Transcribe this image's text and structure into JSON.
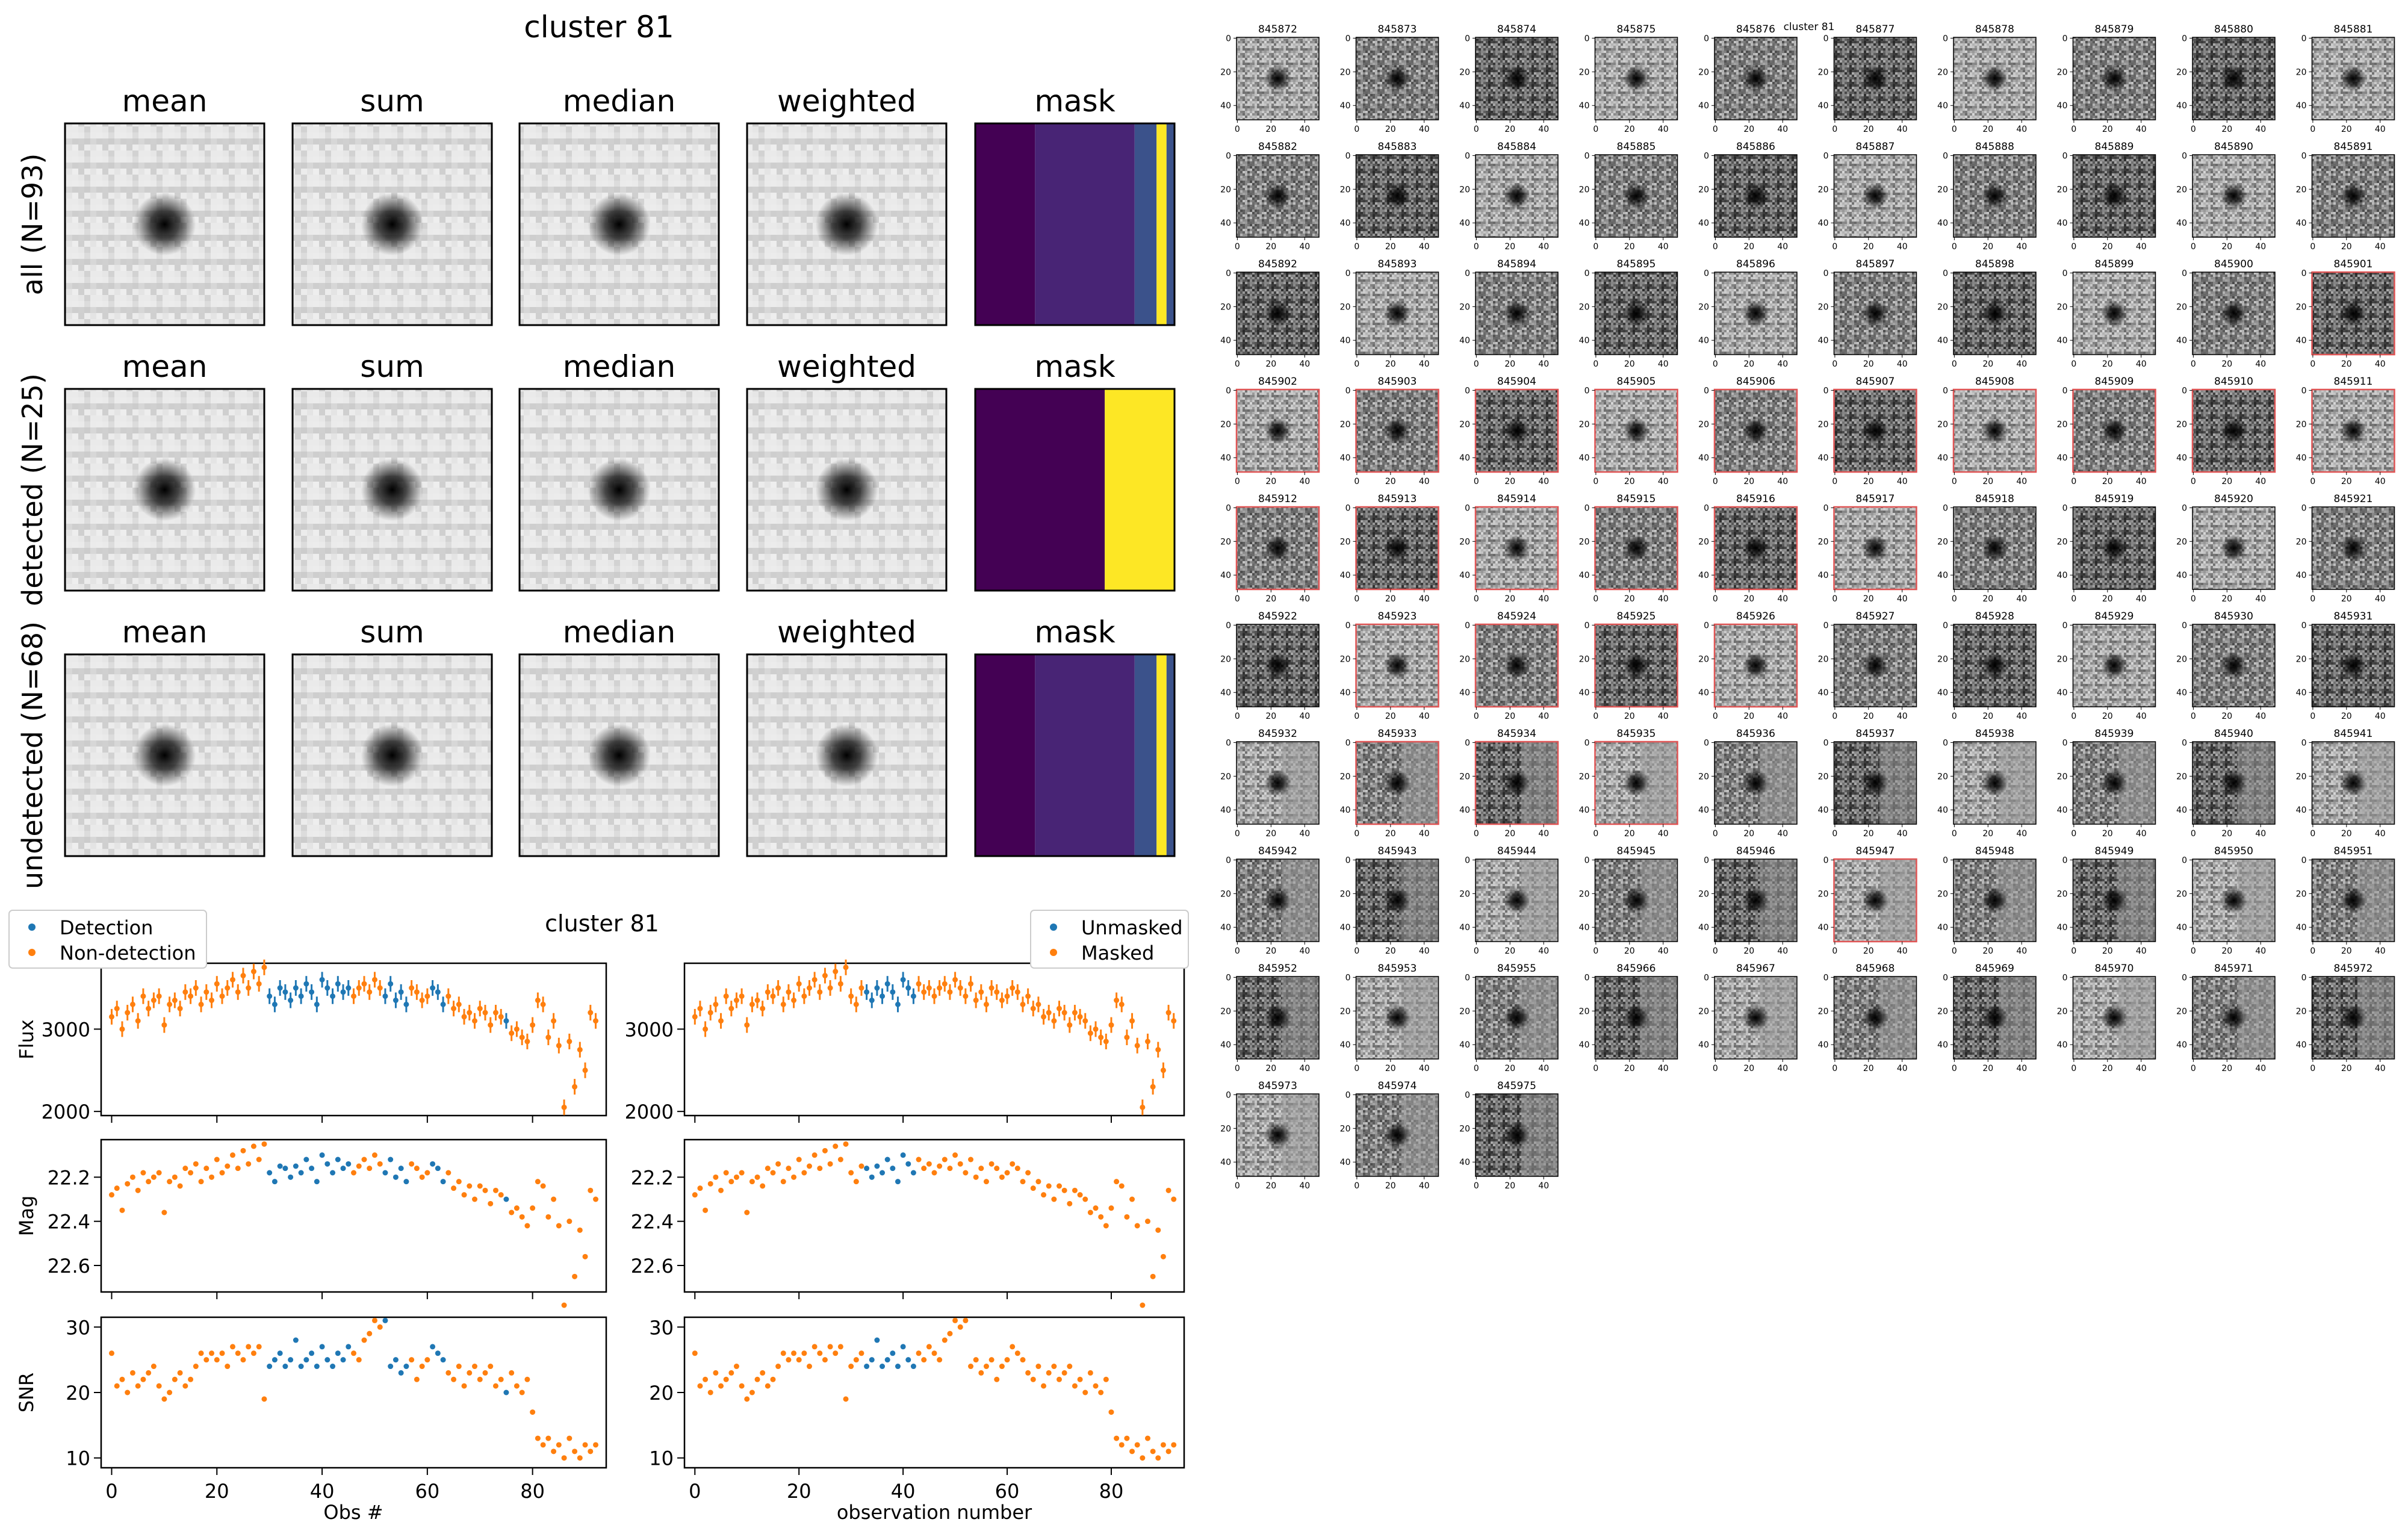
{
  "left": {
    "title": "cluster 81",
    "columns": [
      "mean",
      "sum",
      "median",
      "weighted",
      "mask"
    ],
    "rows": [
      {
        "label": "all (N=93)",
        "mask_bands": [
          {
            "start": 0.0,
            "end": 0.3,
            "level": 0
          },
          {
            "start": 0.3,
            "end": 0.8,
            "level": 1
          },
          {
            "start": 0.8,
            "end": 0.91,
            "level": 2
          },
          {
            "start": 0.91,
            "end": 0.96,
            "level": 4
          },
          {
            "start": 0.96,
            "end": 1.0,
            "level": 2
          }
        ]
      },
      {
        "label": "detected (N=25)",
        "mask_bands": [
          {
            "start": 0.0,
            "end": 0.65,
            "level": 0
          },
          {
            "start": 0.65,
            "end": 1.0,
            "level": 4
          }
        ]
      },
      {
        "label": "undetected (N=68)",
        "mask_bands": [
          {
            "start": 0.0,
            "end": 0.3,
            "level": 0
          },
          {
            "start": 0.3,
            "end": 0.8,
            "level": 1
          },
          {
            "start": 0.8,
            "end": 0.91,
            "level": 2
          },
          {
            "start": 0.91,
            "end": 0.96,
            "level": 4
          },
          {
            "start": 0.96,
            "end": 1.0,
            "level": 2
          }
        ]
      }
    ]
  },
  "lightcurve": {
    "title": "cluster 81",
    "legend_left": [
      "Detection",
      "Non-detection"
    ],
    "legend_right": [
      "Unmasked",
      "Masked"
    ],
    "xlabel_left": "Obs #",
    "xlabel_right": "observation number",
    "ylabels": [
      "Flux",
      "Mag",
      "SNR"
    ],
    "x_ticks": [
      "0",
      "20",
      "40",
      "60",
      "80"
    ],
    "flux_ticks": [
      "2000",
      "3000"
    ],
    "mag_ticks": [
      "22.2",
      "22.4",
      "22.6"
    ],
    "snr_ticks": [
      "10",
      "20",
      "30"
    ]
  },
  "right": {
    "title": "cluster 81",
    "ids": [
      "845872",
      "845873",
      "845874",
      "845875",
      "845876",
      "845877",
      "845878",
      "845879",
      "845880",
      "845881",
      "845882",
      "845883",
      "845884",
      "845885",
      "845886",
      "845887",
      "845888",
      "845889",
      "845890",
      "845891",
      "845892",
      "845893",
      "845894",
      "845895",
      "845896",
      "845897",
      "845898",
      "845899",
      "845900",
      "845901",
      "845902",
      "845903",
      "845904",
      "845905",
      "845906",
      "845907",
      "845908",
      "845909",
      "845910",
      "845911",
      "845912",
      "845913",
      "845914",
      "845915",
      "845916",
      "845917",
      "845918",
      "845919",
      "845920",
      "845921",
      "845922",
      "845923",
      "845924",
      "845925",
      "845926",
      "845927",
      "845928",
      "845929",
      "845930",
      "845931",
      "845932",
      "845933",
      "845934",
      "845935",
      "845936",
      "845937",
      "845938",
      "845939",
      "845940",
      "845941",
      "845942",
      "845943",
      "845944",
      "845945",
      "845946",
      "845947",
      "845948",
      "845949",
      "845950",
      "845951",
      "845952",
      "845953",
      "845955",
      "845966",
      "845967",
      "845968",
      "845969",
      "845970",
      "845971",
      "845972",
      "845973",
      "845974",
      "845975"
    ],
    "highlighted": [
      "845901",
      "845902",
      "845903",
      "845904",
      "845905",
      "845906",
      "845907",
      "845908",
      "845909",
      "845910",
      "845911",
      "845912",
      "845913",
      "845914",
      "845915",
      "845916",
      "845917",
      "845923",
      "845924",
      "845925",
      "845926",
      "845933",
      "845934",
      "845935",
      "845947"
    ],
    "y_ticks": [
      "0",
      "20",
      "40"
    ],
    "x_ticks": [
      "0",
      "20",
      "40"
    ]
  },
  "colors": {
    "detection": "#1f77b4",
    "nondetection": "#ff7f0e",
    "highlight": "#e05555",
    "viridis": [
      "#440154",
      "#482475",
      "#3b528b",
      "#21918c",
      "#fde725"
    ]
  },
  "chart_data": [
    {
      "type": "scatter",
      "title": "cluster 81",
      "xlabel": "Obs #",
      "ylabel": "Flux",
      "series_names": [
        "Detection",
        "Non-detection"
      ],
      "flux": [
        3150,
        3250,
        3000,
        3200,
        3300,
        3100,
        3400,
        3250,
        3350,
        3400,
        3050,
        3300,
        3350,
        3250,
        3450,
        3400,
        3500,
        3300,
        3450,
        3350,
        3550,
        3400,
        3500,
        3600,
        3450,
        3650,
        3500,
        3700,
        3550,
        3750,
        3400,
        3300,
        3500,
        3450,
        3350,
        3500,
        3400,
        3550,
        3450,
        3300,
        3600,
        3500,
        3400,
        3550,
        3450,
        3500,
        3400,
        3500,
        3550,
        3450,
        3600,
        3500,
        3400,
        3550,
        3350,
        3450,
        3300,
        3500,
        3450,
        3350,
        3400,
        3500,
        3450,
        3300,
        3400,
        3250,
        3300,
        3150,
        3200,
        3100,
        3250,
        3200,
        3050,
        3200,
        3150,
        3100,
        2950,
        3000,
        2900,
        2850,
        3050,
        3350,
        3300,
        2900,
        3100,
        2800,
        2050,
        2850,
        2300,
        2750,
        2500,
        3200,
        3100
      ],
      "detected": [
        30,
        31,
        32,
        33,
        34,
        35,
        36,
        37,
        38,
        39,
        40,
        41,
        42,
        43,
        44,
        45,
        52,
        53,
        54,
        55,
        56,
        61,
        62,
        63,
        75
      ],
      "ylim": [
        1950,
        3800
      ],
      "xlim": [
        -2,
        94
      ]
    },
    {
      "type": "scatter",
      "xlabel": "Obs #",
      "ylabel": "Mag",
      "inverted_y": true,
      "mag": [
        22.28,
        22.25,
        22.35,
        22.23,
        22.2,
        22.26,
        22.18,
        22.22,
        22.2,
        22.18,
        22.36,
        22.22,
        22.2,
        22.24,
        22.16,
        22.18,
        22.14,
        22.22,
        22.16,
        22.2,
        22.12,
        22.18,
        22.15,
        22.1,
        22.16,
        22.08,
        22.14,
        22.06,
        22.12,
        22.05,
        22.18,
        22.22,
        22.15,
        22.16,
        22.2,
        22.15,
        22.18,
        22.12,
        22.16,
        22.22,
        22.1,
        22.14,
        22.18,
        22.12,
        22.16,
        22.14,
        22.18,
        22.15,
        22.12,
        22.16,
        22.1,
        22.14,
        22.18,
        22.12,
        22.2,
        22.16,
        22.22,
        22.14,
        22.16,
        22.2,
        22.18,
        22.14,
        22.16,
        22.22,
        22.18,
        22.25,
        22.22,
        22.28,
        22.24,
        22.3,
        22.24,
        22.26,
        22.32,
        22.26,
        22.28,
        22.3,
        22.36,
        22.34,
        22.38,
        22.42,
        22.34,
        22.22,
        22.24,
        22.38,
        22.3,
        22.42,
        22.78,
        22.4,
        22.65,
        22.44,
        22.56,
        22.26,
        22.3
      ],
      "ylim": [
        22.72,
        22.03
      ]
    },
    {
      "type": "scatter",
      "xlabel": "Obs #",
      "ylabel": "SNR",
      "snr": [
        26,
        21,
        22,
        20,
        23,
        21,
        22,
        23,
        24,
        21,
        19,
        20,
        22,
        23,
        21,
        22,
        24,
        26,
        25,
        26,
        25,
        26,
        24,
        27,
        26,
        25,
        27,
        26,
        27,
        19,
        24,
        25,
        26,
        24,
        25,
        28,
        24,
        25,
        26,
        24,
        27,
        25,
        24,
        26,
        25,
        27,
        26,
        25,
        28,
        29,
        31,
        30,
        31,
        24,
        25,
        23,
        24,
        25,
        22,
        24,
        25,
        27,
        26,
        25,
        23,
        22,
        24,
        21,
        23,
        24,
        22,
        23,
        24,
        21,
        22,
        20,
        23,
        21,
        20,
        22,
        17,
        13,
        12,
        13,
        11,
        12,
        10,
        13,
        11,
        10,
        12,
        11,
        12
      ],
      "ylim": [
        8.5,
        31.5
      ]
    }
  ]
}
